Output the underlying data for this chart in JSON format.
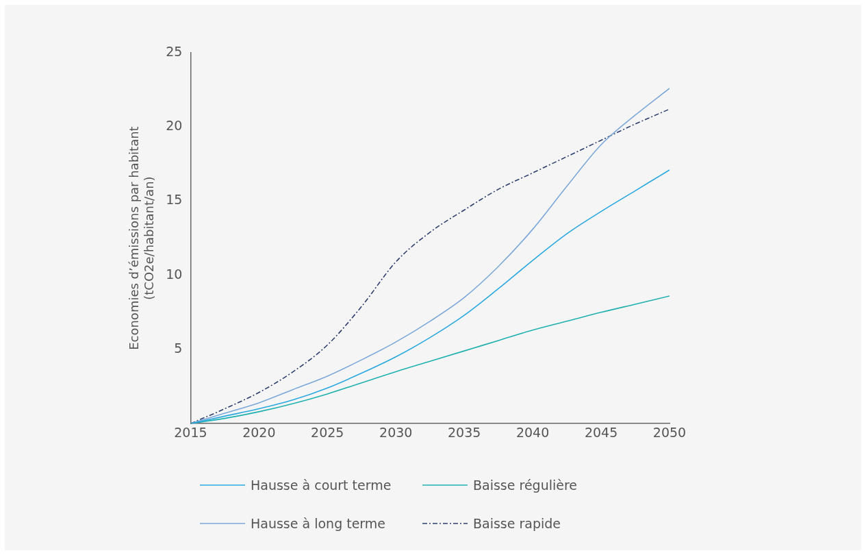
{
  "chart_data": {
    "type": "line",
    "ylabel": "Economies d’émissions par habitant\n(tCO2e/habitant/an)",
    "xlim": [
      2015,
      2050
    ],
    "xticks": [
      2015,
      2020,
      2025,
      2030,
      2035,
      2040,
      2045,
      2050
    ],
    "ylim": [
      0,
      25
    ],
    "yticks": [
      5,
      10,
      15,
      20,
      25
    ],
    "grid": false,
    "legend": "bottom",
    "marker": "none",
    "series": [
      {
        "name": "Hausse à court terme",
        "color": "#29a8e0",
        "line_style": "solid",
        "x": [
          2015,
          2017.5,
          2020,
          2022.5,
          2025,
          2027.5,
          2030,
          2032.5,
          2035,
          2037.5,
          2040,
          2042.5,
          2045,
          2047.5,
          2050
        ],
        "values": [
          0,
          0.5,
          1.0,
          1.6,
          2.4,
          3.4,
          4.5,
          5.8,
          7.3,
          9.1,
          11.0,
          12.8,
          14.3,
          15.7,
          17.1
        ]
      },
      {
        "name": "Baisse régulière",
        "color": "#1fb0b0",
        "line_style": "solid",
        "x": [
          2015,
          2017.5,
          2020,
          2022.5,
          2025,
          2027.5,
          2030,
          2032.5,
          2035,
          2037.5,
          2040,
          2042.5,
          2045,
          2047.5,
          2050
        ],
        "values": [
          0,
          0.35,
          0.8,
          1.35,
          2.0,
          2.75,
          3.5,
          4.2,
          4.9,
          5.6,
          6.3,
          6.9,
          7.5,
          8.05,
          8.6
        ]
      },
      {
        "name": "Hausse à long terme",
        "color": "#7ba7d9",
        "line_style": "solid",
        "x": [
          2015,
          2017.5,
          2020,
          2022.5,
          2025,
          2027.5,
          2030,
          2032.5,
          2035,
          2037.5,
          2040,
          2042.5,
          2045,
          2047.5,
          2050
        ],
        "values": [
          0,
          0.7,
          1.4,
          2.3,
          3.2,
          4.3,
          5.5,
          6.9,
          8.5,
          10.6,
          13.1,
          16.0,
          18.8,
          20.8,
          22.6
        ]
      },
      {
        "name": "Baisse rapide",
        "color": "#2e3f6e",
        "line_style": "dashdot",
        "x": [
          2015,
          2017.5,
          2020,
          2022.5,
          2025,
          2027.5,
          2030,
          2032.5,
          2035,
          2037.5,
          2040,
          2042.5,
          2045,
          2047.5,
          2050
        ],
        "values": [
          0,
          1.0,
          2.1,
          3.5,
          5.3,
          7.9,
          10.9,
          12.9,
          14.4,
          15.8,
          16.9,
          18.0,
          19.1,
          20.2,
          21.2
        ]
      }
    ]
  }
}
